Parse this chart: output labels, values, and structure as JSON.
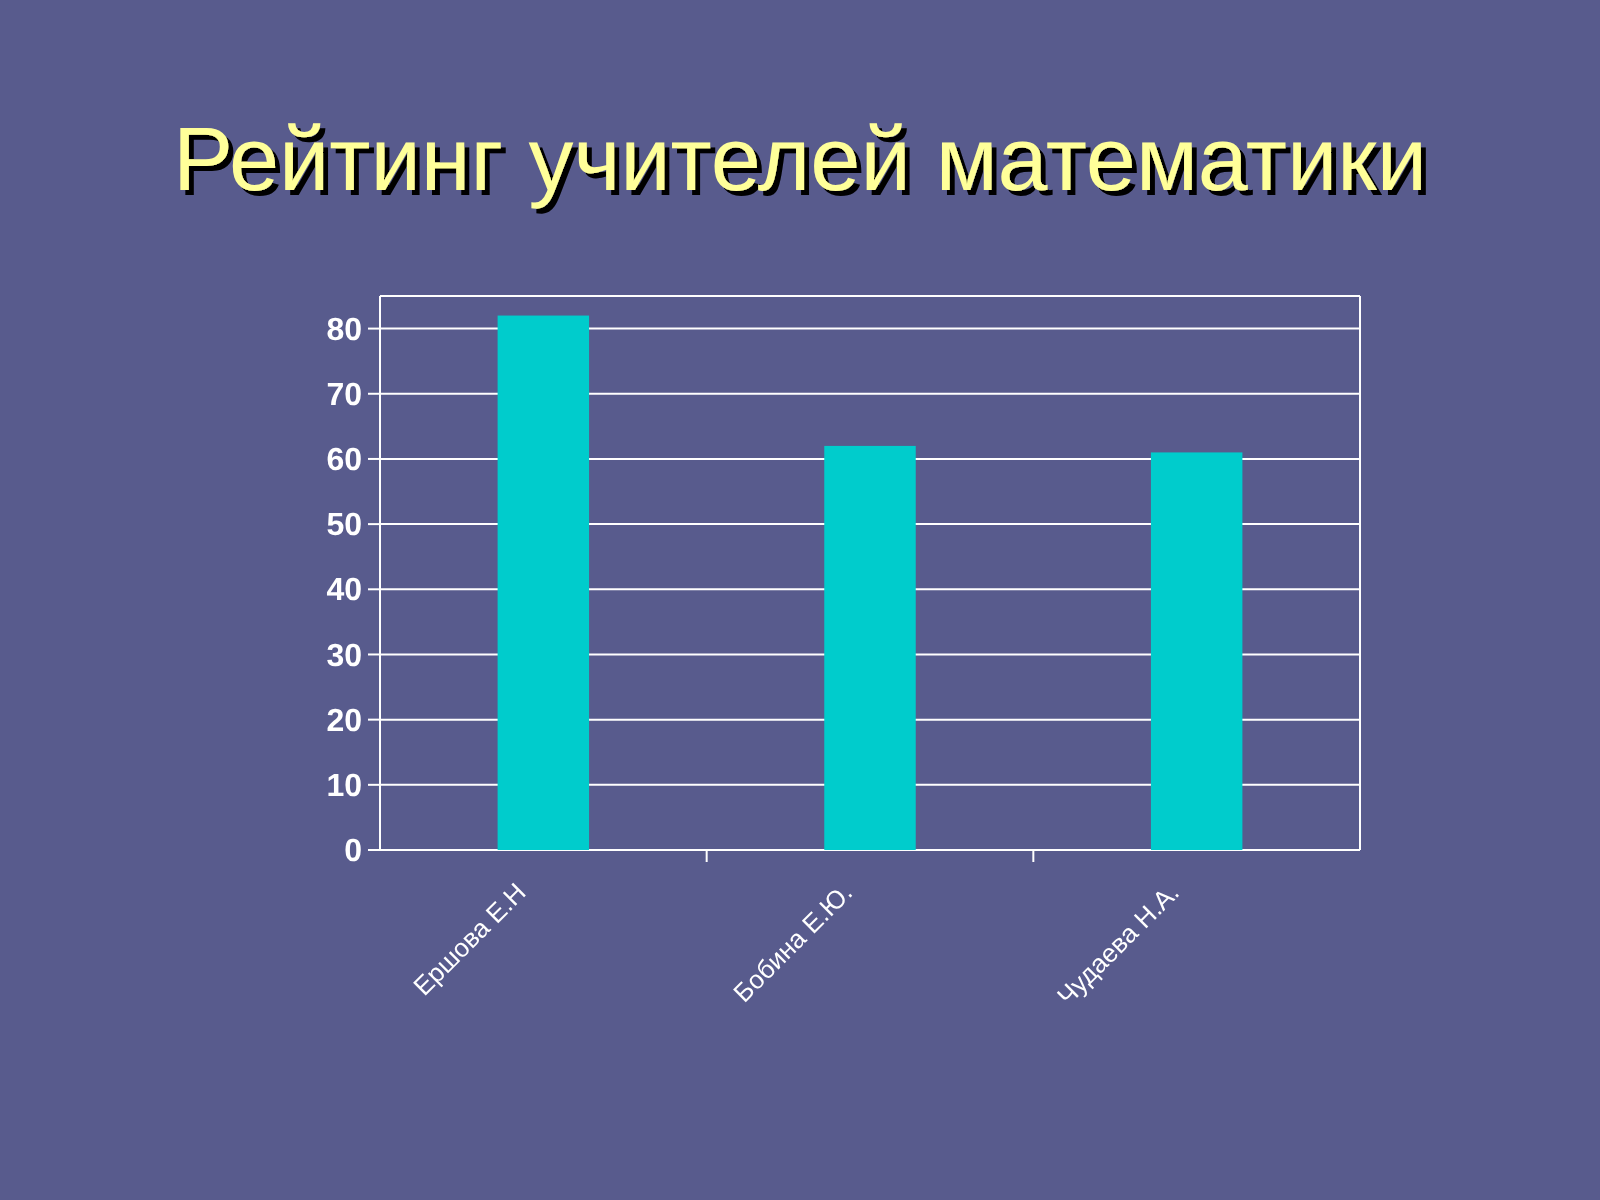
{
  "chart_data": {
    "type": "bar",
    "title": "Рейтинг учителей математики",
    "categories": [
      "Ершова Е.Н",
      "Бобина Е.Ю.",
      "Чудаева Н.А."
    ],
    "values": [
      82,
      62,
      61
    ],
    "color": "#00cccc",
    "ylim": [
      0,
      85
    ],
    "yticks": [
      0,
      10,
      20,
      30,
      40,
      50,
      60,
      70,
      80
    ],
    "grid": "y"
  }
}
